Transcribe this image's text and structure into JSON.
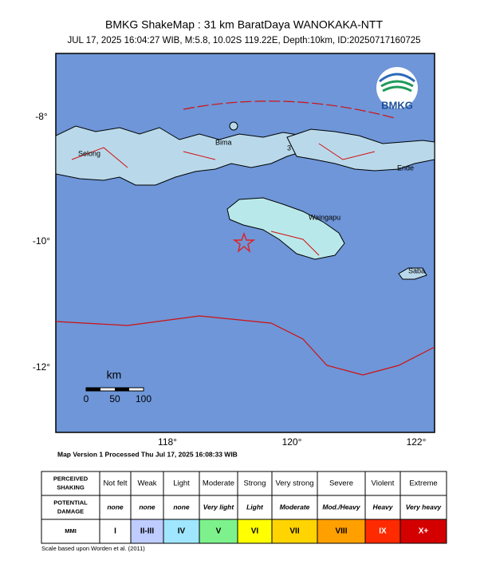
{
  "header": {
    "title": "BMKG ShakeMap : 31 km BaratDaya WANOKAKA-NTT",
    "subtitle": "JUL 17, 2025 16:04:27 WIB, M:5.8, 10.02S 119.22E, Depth:10km, ID:20250717160725"
  },
  "logo": "BMKG",
  "map": {
    "lat_labels": [
      "-8°",
      "-10°",
      "-12°"
    ],
    "lon_labels": [
      "118°",
      "120°",
      "122°"
    ],
    "places": [
      "Selong",
      "Bima",
      "3",
      "Ende",
      "Waingapu",
      "Saba"
    ],
    "scale": {
      "unit": "km",
      "ticks": [
        "0",
        "50",
        "100"
      ]
    }
  },
  "version_note": "Map Version 1 Processed Thu Jul 17, 2025 16:08:33 WIB",
  "legend_table": {
    "rows": [
      [
        "PERCEIVED SHAKING",
        "Not felt",
        "Weak",
        "Light",
        "Moderate",
        "Strong",
        "Very strong",
        "Severe",
        "Violent",
        "Extreme"
      ],
      [
        "POTENTIAL DAMAGE",
        "none",
        "none",
        "none",
        "Very light",
        "Light",
        "Moderate",
        "Mod./Heavy",
        "Heavy",
        "Very heavy"
      ],
      [
        "MMI",
        "I",
        "II-III",
        "IV",
        "V",
        "VI",
        "VII",
        "VIII",
        "IX",
        "X+"
      ]
    ]
  },
  "footnote": "Scale based upon Worden et al. (2011)"
}
